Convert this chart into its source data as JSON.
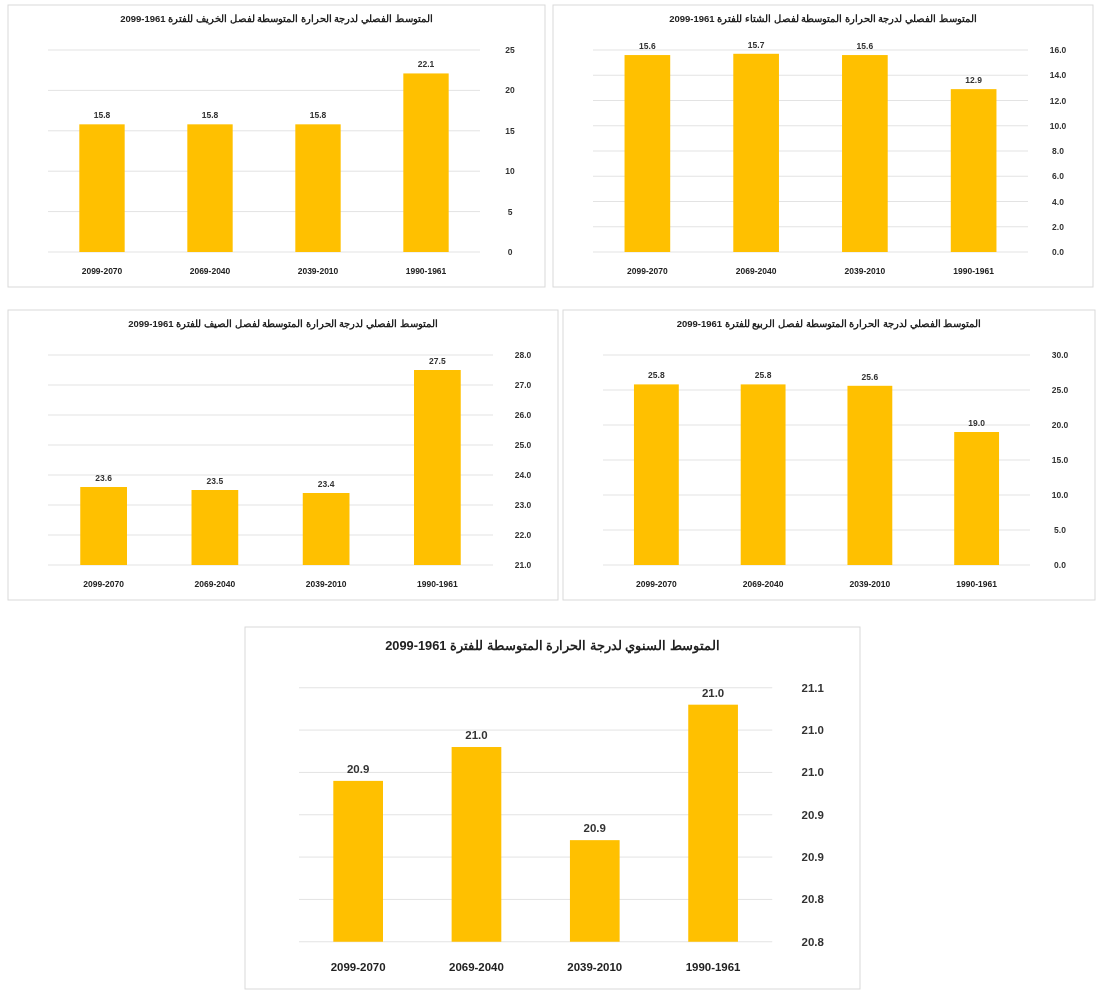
{
  "chart_data": [
    {
      "type": "bar",
      "title": "المتوسط الفصلي لدرجة الحرارة المتوسطة لفصل الخريف للفترة 1961-2099",
      "categories": [
        "2099-2070",
        "2069-2040",
        "2039-2010",
        "1990-1961"
      ],
      "series": [
        {
          "color": "#ffc000",
          "values": [
            15.8,
            15.8,
            15.8,
            22.1
          ],
          "value_labels": [
            "15.8",
            "15.8",
            "15.8",
            "22.1"
          ]
        }
      ],
      "ylim": [
        0,
        25
      ],
      "yticks": [
        0,
        5,
        10,
        15,
        20,
        25
      ],
      "grid": "y"
    },
    {
      "type": "bar",
      "title": "المتوسط الفصلي لدرجة الحرارة المتوسطة لفصل الشتاء للفترة 1961-2099",
      "categories": [
        "2099-2070",
        "2069-2040",
        "2039-2010",
        "1990-1961"
      ],
      "series": [
        {
          "color": "#ffc000",
          "values": [
            15.6,
            15.7,
            15.6,
            12.9
          ],
          "value_labels": [
            "15.6",
            "15.7",
            "15.6",
            "12.9"
          ]
        }
      ],
      "ylim": [
        0,
        16
      ],
      "yticks": [
        {
          "value": 0,
          "label": "0.0"
        },
        {
          "value": 2,
          "label": "2.0"
        },
        {
          "value": 4,
          "label": "4.0"
        },
        {
          "value": 6,
          "label": "6.0"
        },
        {
          "value": 8,
          "label": "8.0"
        },
        {
          "value": 10,
          "label": "10.0"
        },
        {
          "value": 12,
          "label": "12.0"
        },
        {
          "value": 14,
          "label": "14.0"
        },
        {
          "value": 16,
          "label": "16.0"
        }
      ],
      "grid": "y"
    },
    {
      "type": "bar",
      "title": "المتوسط الفصلي لدرجة الحرارة المتوسطة لفصل الصيف للفترة 1961-2099",
      "categories": [
        "2099-2070",
        "2069-2040",
        "2039-2010",
        "1990-1961"
      ],
      "series": [
        {
          "color": "#ffc000",
          "values": [
            23.6,
            23.5,
            23.4,
            27.5
          ],
          "value_labels": [
            "23.6",
            "23.5",
            "23.4",
            "27.5"
          ]
        }
      ],
      "ylim": [
        21,
        28
      ],
      "yticks": [
        {
          "value": 21,
          "label": "21.0"
        },
        {
          "value": 22,
          "label": "22.0"
        },
        {
          "value": 23,
          "label": "23.0"
        },
        {
          "value": 24,
          "label": "24.0"
        },
        {
          "value": 25,
          "label": "25.0"
        },
        {
          "value": 26,
          "label": "26.0"
        },
        {
          "value": 27,
          "label": "27.0"
        },
        {
          "value": 28,
          "label": "28.0"
        }
      ],
      "grid": "y"
    },
    {
      "type": "bar",
      "title": "المتوسط الفصلي لدرجة الحرارة المتوسطة لفصل الربيع للفترة 1961-2099",
      "categories": [
        "2099-2070",
        "2069-2040",
        "2039-2010",
        "1990-1961"
      ],
      "series": [
        {
          "color": "#ffc000",
          "values": [
            25.8,
            25.8,
            25.6,
            19.0
          ],
          "value_labels": [
            "25.8",
            "25.8",
            "25.6",
            "19.0"
          ]
        }
      ],
      "ylim": [
        0,
        30
      ],
      "yticks": [
        {
          "value": 0,
          "label": "0.0"
        },
        {
          "value": 5,
          "label": "5.0"
        },
        {
          "value": 10,
          "label": "10.0"
        },
        {
          "value": 15,
          "label": "15.0"
        },
        {
          "value": 20,
          "label": "20.0"
        },
        {
          "value": 25,
          "label": "25.0"
        },
        {
          "value": 30,
          "label": "30.0"
        }
      ],
      "grid": "y"
    },
    {
      "type": "bar",
      "title": "المتوسط السنوي لدرجة الحرارة المتوسطة للفترة 1961-2099",
      "categories": [
        "2099-2070",
        "2069-2040",
        "2039-2010",
        "1990-1961"
      ],
      "series": [
        {
          "color": "#ffc000",
          "values": [
            20.94,
            20.98,
            20.87,
            21.03
          ],
          "value_labels": [
            "20.9",
            "21.0",
            "20.9",
            "21.0"
          ]
        }
      ],
      "ylim": [
        20.75,
        21.05
      ],
      "yticks": [
        {
          "value": 20.75,
          "label": "20.8"
        },
        {
          "value": 20.8,
          "label": "20.8"
        },
        {
          "value": 20.85,
          "label": "20.9"
        },
        {
          "value": 20.9,
          "label": "20.9"
        },
        {
          "value": 20.95,
          "label": "21.0"
        },
        {
          "value": 21.0,
          "label": "21.0"
        },
        {
          "value": 21.05,
          "label": "21.1"
        }
      ],
      "grid": "y"
    }
  ]
}
